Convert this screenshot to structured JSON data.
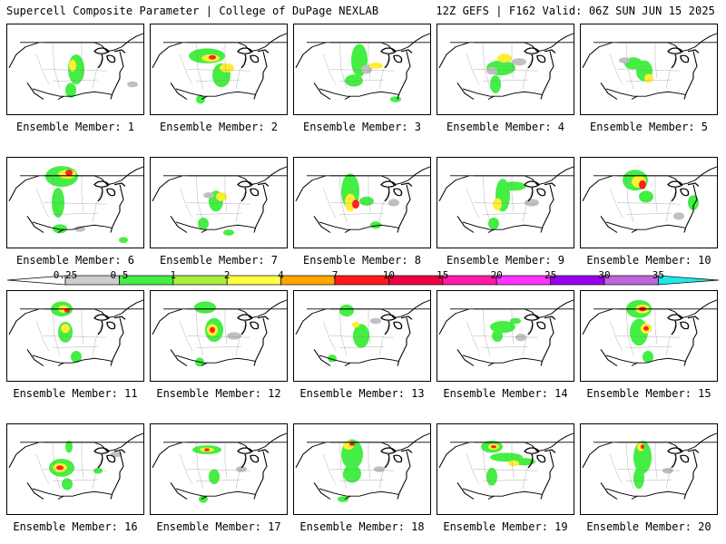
{
  "header": {
    "left": "Supercell Composite Parameter | College of DuPage NEXLAB",
    "right": "12Z GEFS | F162 Valid: 06Z SUN JUN 15 2025"
  },
  "members": [
    {
      "label": "Ensemble Member: 1",
      "blobs": [
        [
          76,
          60,
          9,
          20,
          1
        ],
        [
          70,
          88,
          6,
          10,
          1
        ],
        [
          72,
          55,
          4,
          8,
          2
        ],
        [
          138,
          80,
          6,
          4,
          0
        ]
      ]
    },
    {
      "label": "Ensemble Member: 2",
      "blobs": [
        [
          62,
          42,
          20,
          10,
          1
        ],
        [
          66,
          45,
          10,
          5,
          2
        ],
        [
          68,
          44,
          4,
          3,
          3
        ],
        [
          78,
          68,
          10,
          16,
          1
        ],
        [
          84,
          58,
          8,
          6,
          2
        ],
        [
          55,
          100,
          5,
          6,
          1
        ]
      ]
    },
    {
      "label": "Ensemble Member: 3",
      "blobs": [
        [
          72,
          48,
          9,
          22,
          1
        ],
        [
          66,
          75,
          10,
          8,
          1
        ],
        [
          80,
          60,
          6,
          6,
          0
        ],
        [
          90,
          55,
          8,
          4,
          2
        ],
        [
          112,
          100,
          6,
          4,
          1
        ]
      ]
    },
    {
      "label": "Ensemble Member: 4",
      "blobs": [
        [
          70,
          58,
          16,
          10,
          1
        ],
        [
          74,
          45,
          8,
          6,
          2
        ],
        [
          64,
          80,
          6,
          12,
          1
        ],
        [
          90,
          50,
          8,
          5,
          0
        ],
        [
          60,
          62,
          6,
          5,
          0
        ]
      ]
    },
    {
      "label": "Ensemble Member: 5",
      "blobs": [
        [
          58,
          52,
          10,
          8,
          1
        ],
        [
          70,
          62,
          9,
          14,
          1
        ],
        [
          75,
          72,
          5,
          6,
          2
        ],
        [
          48,
          48,
          6,
          4,
          0
        ]
      ]
    },
    {
      "label": "Ensemble Member: 6",
      "blobs": [
        [
          60,
          25,
          18,
          14,
          1
        ],
        [
          66,
          22,
          10,
          6,
          2
        ],
        [
          68,
          20,
          4,
          4,
          3
        ],
        [
          56,
          60,
          7,
          20,
          1
        ],
        [
          58,
          95,
          8,
          6,
          1
        ],
        [
          80,
          95,
          6,
          4,
          0
        ],
        [
          128,
          110,
          5,
          4,
          1
        ]
      ]
    },
    {
      "label": "Ensemble Member: 7",
      "blobs": [
        [
          72,
          58,
          8,
          14,
          1
        ],
        [
          78,
          52,
          6,
          6,
          2
        ],
        [
          58,
          88,
          6,
          8,
          1
        ],
        [
          86,
          100,
          6,
          4,
          1
        ],
        [
          64,
          50,
          6,
          4,
          0
        ]
      ]
    },
    {
      "label": "Ensemble Member: 8",
      "blobs": [
        [
          62,
          45,
          10,
          24,
          1
        ],
        [
          62,
          60,
          6,
          12,
          2
        ],
        [
          68,
          62,
          4,
          6,
          3
        ],
        [
          80,
          58,
          8,
          6,
          1
        ],
        [
          90,
          90,
          6,
          5,
          1
        ],
        [
          110,
          60,
          6,
          5,
          0
        ]
      ]
    },
    {
      "label": "Ensemble Member: 9",
      "blobs": [
        [
          72,
          50,
          8,
          22,
          1
        ],
        [
          84,
          38,
          14,
          6,
          1
        ],
        [
          66,
          62,
          5,
          8,
          2
        ],
        [
          62,
          88,
          6,
          8,
          1
        ],
        [
          104,
          60,
          8,
          5,
          0
        ]
      ]
    },
    {
      "label": "Ensemble Member: 10",
      "blobs": [
        [
          60,
          30,
          14,
          14,
          1
        ],
        [
          64,
          32,
          8,
          8,
          2
        ],
        [
          68,
          36,
          4,
          6,
          3
        ],
        [
          72,
          52,
          8,
          8,
          1
        ],
        [
          124,
          60,
          6,
          10,
          1
        ],
        [
          108,
          78,
          6,
          5,
          0
        ]
      ]
    },
    {
      "label": "Ensemble Member: 11",
      "blobs": [
        [
          60,
          24,
          12,
          10,
          1
        ],
        [
          62,
          24,
          6,
          5,
          2
        ],
        [
          66,
          26,
          3,
          3,
          3
        ],
        [
          64,
          55,
          8,
          14,
          1
        ],
        [
          64,
          50,
          5,
          6,
          2
        ],
        [
          76,
          88,
          6,
          8,
          1
        ]
      ]
    },
    {
      "label": "Ensemble Member: 12",
      "blobs": [
        [
          60,
          22,
          12,
          8,
          1
        ],
        [
          70,
          52,
          10,
          16,
          1
        ],
        [
          68,
          52,
          6,
          8,
          2
        ],
        [
          68,
          52,
          3,
          4,
          3
        ],
        [
          54,
          95,
          5,
          6,
          1
        ],
        [
          92,
          60,
          8,
          5,
          0
        ]
      ]
    },
    {
      "label": "Ensemble Member: 13",
      "blobs": [
        [
          58,
          26,
          8,
          8,
          1
        ],
        [
          74,
          60,
          9,
          16,
          1
        ],
        [
          68,
          45,
          4,
          4,
          2
        ],
        [
          90,
          40,
          6,
          4,
          0
        ],
        [
          42,
          90,
          5,
          5,
          1
        ]
      ]
    },
    {
      "label": "Ensemble Member: 14",
      "blobs": [
        [
          72,
          48,
          14,
          8,
          1
        ],
        [
          86,
          40,
          6,
          4,
          1
        ],
        [
          66,
          60,
          6,
          8,
          1
        ],
        [
          92,
          62,
          6,
          5,
          0
        ]
      ]
    },
    {
      "label": "Ensemble Member: 15",
      "blobs": [
        [
          64,
          24,
          14,
          12,
          1
        ],
        [
          68,
          24,
          8,
          6,
          2
        ],
        [
          68,
          24,
          4,
          3,
          3
        ],
        [
          64,
          55,
          10,
          18,
          1
        ],
        [
          72,
          50,
          6,
          7,
          2
        ],
        [
          72,
          50,
          3,
          3,
          3
        ],
        [
          74,
          88,
          6,
          8,
          1
        ]
      ]
    },
    {
      "label": "Ensemble Member: 16",
      "blobs": [
        [
          60,
          58,
          14,
          12,
          1
        ],
        [
          58,
          58,
          8,
          6,
          2
        ],
        [
          58,
          58,
          4,
          3,
          3
        ],
        [
          66,
          80,
          6,
          8,
          1
        ],
        [
          68,
          30,
          4,
          8,
          1
        ],
        [
          100,
          62,
          5,
          4,
          1
        ],
        [
          120,
          40,
          6,
          4,
          0
        ]
      ]
    },
    {
      "label": "Ensemble Member: 17",
      "blobs": [
        [
          62,
          34,
          16,
          6,
          1
        ],
        [
          62,
          34,
          8,
          3,
          2
        ],
        [
          62,
          34,
          3,
          2,
          3
        ],
        [
          70,
          70,
          6,
          10,
          1
        ],
        [
          58,
          100,
          5,
          5,
          1
        ],
        [
          100,
          60,
          6,
          4,
          0
        ]
      ]
    },
    {
      "label": "Ensemble Member: 18",
      "blobs": [
        [
          64,
          40,
          12,
          20,
          1
        ],
        [
          60,
          28,
          6,
          6,
          2
        ],
        [
          64,
          26,
          3,
          3,
          3
        ],
        [
          64,
          66,
          10,
          12,
          1
        ],
        [
          54,
          100,
          6,
          4,
          1
        ],
        [
          94,
          60,
          6,
          4,
          0
        ]
      ]
    },
    {
      "label": "Ensemble Member: 19",
      "blobs": [
        [
          60,
          30,
          12,
          8,
          1
        ],
        [
          62,
          30,
          6,
          4,
          2
        ],
        [
          62,
          30,
          3,
          2,
          3
        ],
        [
          76,
          44,
          18,
          6,
          1
        ],
        [
          96,
          50,
          12,
          5,
          1
        ],
        [
          60,
          70,
          6,
          12,
          1
        ],
        [
          84,
          52,
          6,
          4,
          2
        ]
      ]
    },
    {
      "label": "Ensemble Member: 20",
      "blobs": [
        [
          68,
          44,
          10,
          22,
          1
        ],
        [
          66,
          30,
          4,
          6,
          2
        ],
        [
          68,
          30,
          2,
          3,
          3
        ],
        [
          64,
          72,
          6,
          14,
          1
        ],
        [
          96,
          62,
          6,
          4,
          0
        ]
      ]
    }
  ],
  "colorbar": {
    "labels": [
      "0.25",
      "0.5",
      "1",
      "2",
      "4",
      "7",
      "10",
      "15",
      "20",
      "25",
      "30",
      "35"
    ],
    "colors": [
      "#cccccc",
      "#44ee44",
      "#a8f040",
      "#ffff44",
      "#ffa500",
      "#ff1a1a",
      "#ee0044",
      "#ff1aaa",
      "#ff33ff",
      "#9900ee",
      "#bb66dd"
    ],
    "extend_low_color": "#ffffff",
    "extend_high_color": "#22e8e8"
  },
  "legend_colors": {
    "level0": "#c0c0c0",
    "level1": "#44ee44",
    "level2": "#ffee33",
    "level3": "#ff2020",
    "level3_core": "#ff8800"
  }
}
